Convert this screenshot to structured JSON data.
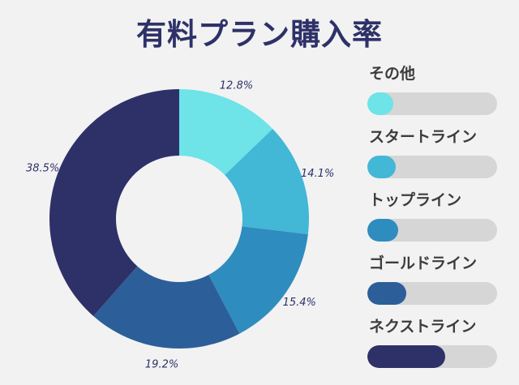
{
  "title": "有料プラン購入率",
  "chart_data": {
    "type": "pie",
    "title": "有料プラン購入率",
    "donut": true,
    "legend_position": "right",
    "slices": [
      {
        "name": "その他",
        "value": 12.8,
        "label": "12.8%",
        "color": "#6ee3e8"
      },
      {
        "name": "スタートライン",
        "value": 14.1,
        "label": "14.1%",
        "color": "#42b7d6"
      },
      {
        "name": "トップライン",
        "value": 15.4,
        "label": "15.4%",
        "color": "#2f8cbf"
      },
      {
        "name": "ゴールドライン",
        "value": 19.2,
        "label": "19.2%",
        "color": "#2c5f99"
      },
      {
        "name": "ネクストライン",
        "value": 38.5,
        "label": "38.5%",
        "color": "#2e3168"
      }
    ]
  },
  "colors": {
    "background": "#f2f2f2",
    "title": "#2e3168",
    "legend_text": "#3c3c3c",
    "track": "#d6d6d6"
  }
}
